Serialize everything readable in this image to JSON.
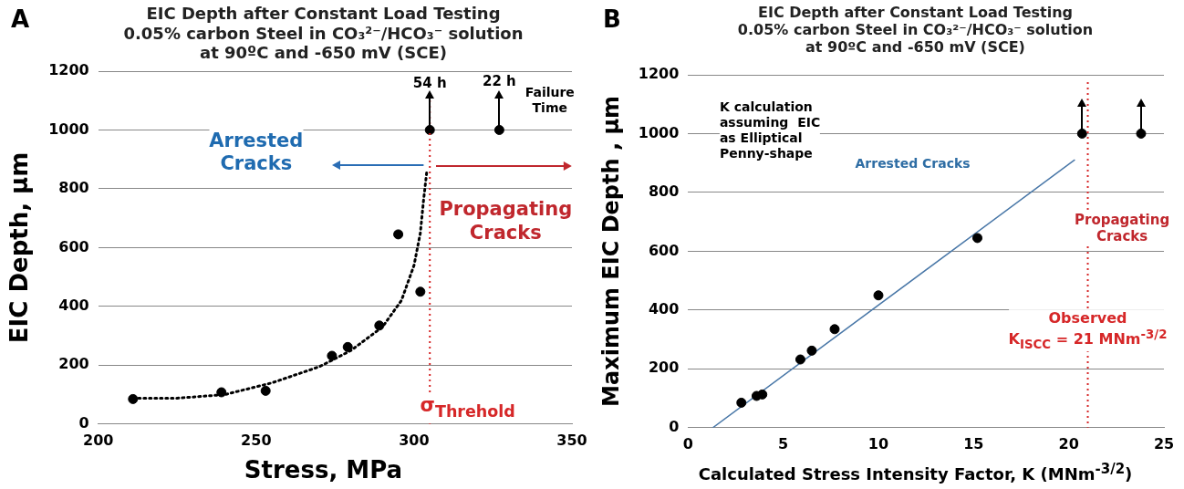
{
  "chart_data": [
    {
      "type": "scatter",
      "title": "EIC Depth after Constant Load Testing",
      "subtitle": "0.05% carbon Steel in CO₃²⁻/HCO₃⁻ solution\nat 90ºC and -650 mV (SCE)",
      "xlabel": "Stress, MPa",
      "ylabel": "EIC Depth, µm",
      "xlim": [
        200,
        350
      ],
      "xticks": [
        200,
        250,
        300,
        350
      ],
      "ylim": [
        0,
        1200
      ],
      "yticks": [
        0,
        200,
        400,
        600,
        800,
        1000,
        1200
      ],
      "grid": "y",
      "legend": false,
      "series": [
        {
          "type": "scatter",
          "color": "#000000",
          "marker": "circle",
          "x": [
            211,
            239,
            253,
            274,
            279,
            289,
            295,
            302,
            305,
            327
          ],
          "values": [
            85,
            108,
            113,
            232,
            262,
            335,
            645,
            450,
            1000,
            1000
          ]
        },
        {
          "type": "line",
          "color": "#000000",
          "marker": "none",
          "line_style": "dotted",
          "x": [
            211,
            225,
            240,
            255,
            270,
            280,
            290,
            296,
            300,
            302,
            303,
            304
          ],
          "values": [
            88,
            88,
            100,
            140,
            195,
            250,
            330,
            420,
            540,
            650,
            760,
            855
          ]
        }
      ],
      "ref_lines": [
        {
          "axis": "x",
          "value": 305,
          "color": "#d62728",
          "line_style": "dotted",
          "label": "σ$_{Threhold}$"
        }
      ],
      "annotations": [
        "A",
        {
          "text": "54 h",
          "x": 305,
          "y": 1160
        },
        {
          "text": "22 h",
          "x": 327,
          "y": 1165
        },
        "Failure\nTime",
        "Arrested\nCracks",
        "Propagating\nCracks"
      ]
    },
    {
      "type": "scatter",
      "title": "EIC Depth after Constant Load Testing",
      "subtitle": "0.05% carbon Steel in CO₃²⁻/HCO₃⁻ solution\nat 90ºC and -650 mV (SCE)",
      "xlabel": "Calculated Stress Intensity Factor, K (MNm$^{-3/2}$)",
      "ylabel": "Maximum EIC Depth , µm",
      "xlim": [
        0,
        25
      ],
      "xticks": [
        0,
        5,
        10,
        15,
        20,
        25
      ],
      "ylim": [
        0,
        1200
      ],
      "yticks": [
        0,
        200,
        400,
        600,
        800,
        1000,
        1200
      ],
      "grid": "y",
      "legend": false,
      "series": [
        {
          "type": "scatter",
          "color": "#000000",
          "marker": "circle",
          "x": [
            2.8,
            3.6,
            3.9,
            5.9,
            6.5,
            7.7,
            10,
            15.2,
            20.7,
            23.8
          ],
          "values": [
            85,
            108,
            113,
            232,
            262,
            335,
            450,
            645,
            1000,
            1000
          ]
        },
        {
          "type": "line",
          "color": "#4a78a8",
          "marker": "none",
          "line_style": "solid",
          "x": [
            1.3,
            20.3
          ],
          "values": [
            0,
            910
          ]
        }
      ],
      "ref_lines": [
        {
          "axis": "x",
          "value": 21,
          "color": "#d62728",
          "line_style": "dotted",
          "label": "Observed\nK$_{ISCC}$ = 21 MNm$^{-3/2}$"
        }
      ],
      "annotations": [
        "B",
        "K calculation\nassuming  EIC\nas Elliptical\nPenny-shape",
        "Arrested Cracks",
        "Propagating\nCracks"
      ]
    }
  ]
}
